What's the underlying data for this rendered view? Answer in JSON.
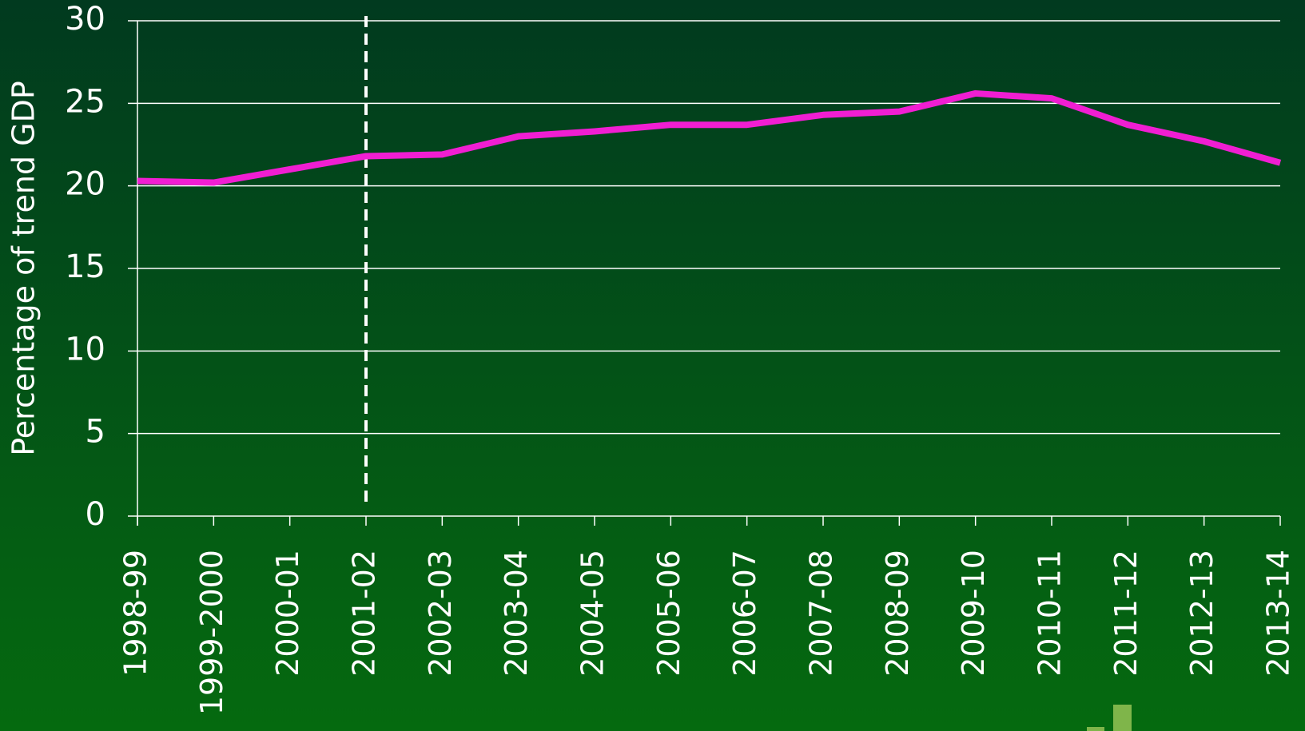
{
  "chart_data": {
    "type": "line",
    "y_axis_label": "Percentage of trend GDP",
    "categories": [
      "1998-99",
      "1999-2000",
      "2000-01",
      "2001-02",
      "2002-03",
      "2003-04",
      "2004-05",
      "2005-06",
      "2006-07",
      "2007-08",
      "2008-09",
      "2009-10",
      "2010-11",
      "2011-12",
      "2012-13",
      "2013-14"
    ],
    "series": [
      {
        "color": "#f01ed2",
        "values": [
          20.3,
          20.2,
          21.0,
          21.8,
          21.9,
          23.0,
          23.3,
          23.7,
          23.7,
          24.3,
          24.5,
          25.6,
          25.3,
          23.7,
          22.7,
          21.4
        ]
      }
    ],
    "ylim": [
      0,
      30
    ],
    "yticks": [
      0,
      5,
      10,
      15,
      20,
      25,
      30
    ],
    "grid": true
  }
}
